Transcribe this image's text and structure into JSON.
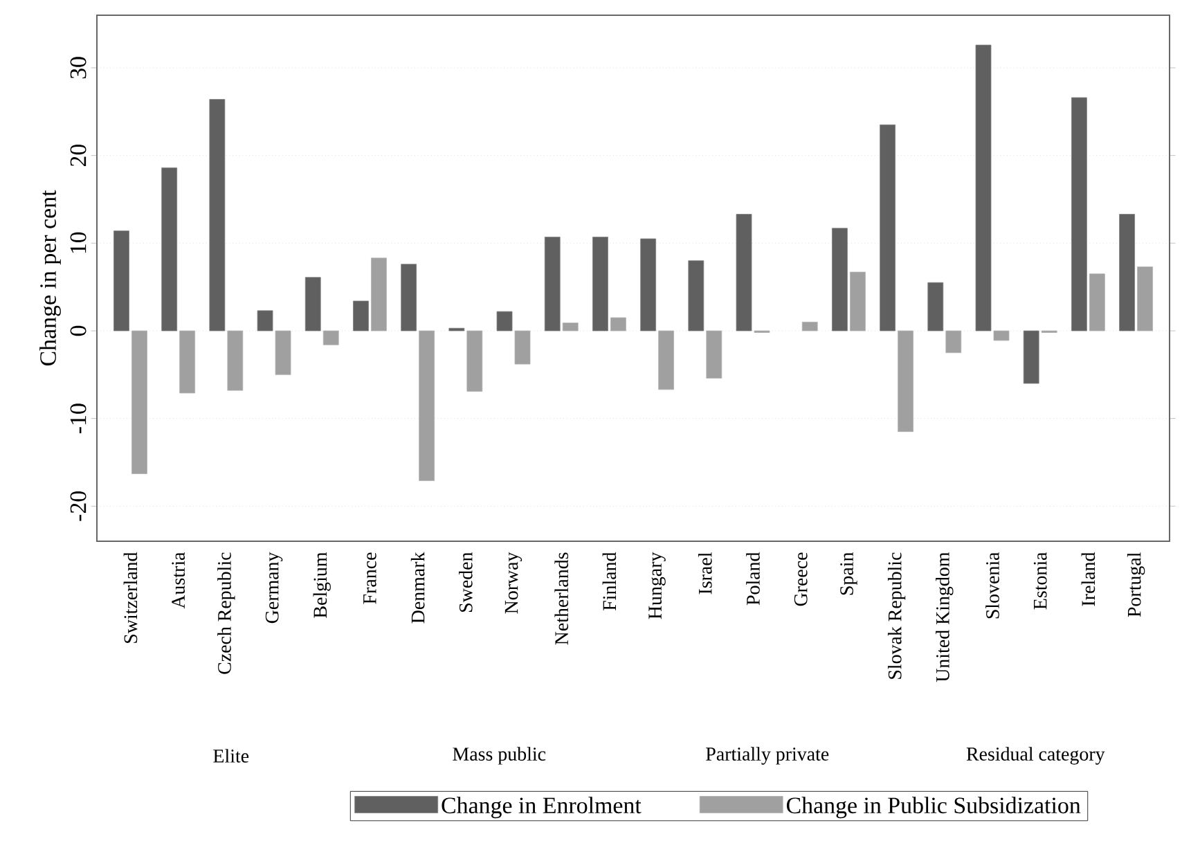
{
  "chart_data": {
    "type": "bar",
    "ylabel": "Change in per cent",
    "categories": [
      "Switzerland",
      "Austria",
      "Czech Republic",
      "Germany",
      "Belgium",
      "France",
      "Denmark",
      "Sweden",
      "Norway",
      "Netherlands",
      "Finland",
      "Hungary",
      "Israel",
      "Poland",
      "Greece",
      "Spain",
      "Slovak Republic",
      "United Kingdom",
      "Slovenia",
      "Estonia",
      "Ireland",
      "Portugal"
    ],
    "series": [
      {
        "name": "Change in Enrolment",
        "color": "#606060",
        "values": [
          11.4,
          18.6,
          26.4,
          2.3,
          6.1,
          3.4,
          7.6,
          0.3,
          2.2,
          10.7,
          10.7,
          10.5,
          8.0,
          13.3,
          null,
          11.7,
          23.5,
          5.5,
          32.6,
          -6.0,
          26.6,
          13.3
        ]
      },
      {
        "name": "Change in Public Subsidization",
        "color": "#a0a0a0",
        "values": [
          -16.3,
          -7.1,
          -6.8,
          -5.0,
          -1.6,
          8.3,
          -17.1,
          -6.9,
          -3.8,
          0.9,
          1.5,
          -6.7,
          -5.4,
          -0.2,
          1.0,
          6.7,
          -11.5,
          -2.5,
          -1.1,
          -0.2,
          6.5,
          7.3
        ]
      }
    ],
    "ylim": [
      -24,
      36
    ],
    "yticks": [
      -20,
      -10,
      0,
      10,
      20,
      30
    ],
    "grid": "y",
    "legend": "bottom",
    "annotations": [
      "Elite",
      "Mass public",
      "Partially private",
      "Residual category"
    ]
  }
}
